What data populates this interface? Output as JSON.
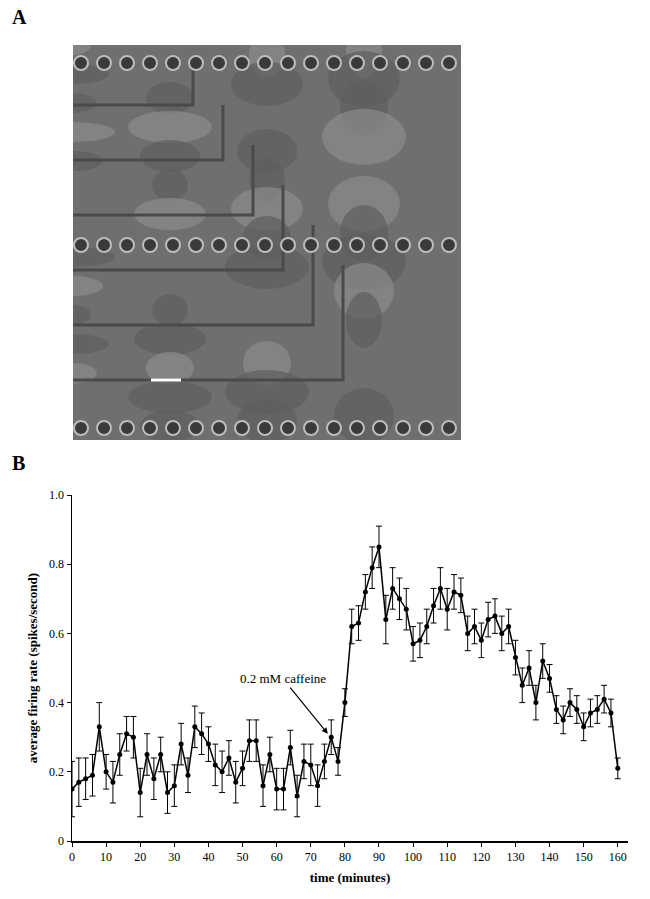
{
  "panel_labels": [
    "A",
    "B"
  ],
  "chart_data": {
    "type": "line",
    "xlabel": "time (minutes)",
    "ylabel": "average firing rate (spikes/second)",
    "x": [
      0,
      2,
      4,
      6,
      8,
      10,
      12,
      14,
      16,
      18,
      20,
      22,
      24,
      26,
      28,
      30,
      32,
      34,
      36,
      38,
      40,
      42,
      44,
      46,
      48,
      50,
      52,
      54,
      56,
      58,
      60,
      62,
      64,
      66,
      68,
      70,
      72,
      74,
      76,
      78,
      80,
      82,
      84,
      86,
      88,
      90,
      92,
      94,
      96,
      98,
      100,
      102,
      104,
      106,
      108,
      110,
      112,
      114,
      116,
      118,
      120,
      122,
      124,
      126,
      128,
      130,
      132,
      134,
      136,
      138,
      140,
      142,
      144,
      146,
      148,
      150,
      152,
      154,
      156,
      158,
      160
    ],
    "values": [
      0.15,
      0.17,
      0.18,
      0.19,
      0.33,
      0.2,
      0.17,
      0.25,
      0.31,
      0.3,
      0.14,
      0.25,
      0.18,
      0.25,
      0.14,
      0.16,
      0.28,
      0.19,
      0.33,
      0.31,
      0.28,
      0.22,
      0.2,
      0.24,
      0.17,
      0.21,
      0.29,
      0.29,
      0.16,
      0.25,
      0.15,
      0.15,
      0.27,
      0.13,
      0.23,
      0.22,
      0.16,
      0.23,
      0.3,
      0.23,
      0.4,
      0.62,
      0.63,
      0.72,
      0.79,
      0.85,
      0.64,
      0.73,
      0.7,
      0.67,
      0.57,
      0.58,
      0.62,
      0.68,
      0.73,
      0.67,
      0.72,
      0.71,
      0.6,
      0.62,
      0.58,
      0.64,
      0.65,
      0.6,
      0.62,
      0.53,
      0.45,
      0.5,
      0.4,
      0.52,
      0.47,
      0.38,
      0.35,
      0.4,
      0.38,
      0.33,
      0.37,
      0.38,
      0.41,
      0.37,
      0.21
    ],
    "errors": [
      0.08,
      0.07,
      0.06,
      0.06,
      0.07,
      0.05,
      0.06,
      0.06,
      0.05,
      0.06,
      0.07,
      0.06,
      0.06,
      0.05,
      0.06,
      0.06,
      0.06,
      0.05,
      0.06,
      0.06,
      0.05,
      0.06,
      0.06,
      0.05,
      0.06,
      0.05,
      0.06,
      0.06,
      0.06,
      0.05,
      0.06,
      0.06,
      0.05,
      0.06,
      0.05,
      0.06,
      0.06,
      0.05,
      0.05,
      0.04,
      0.04,
      0.05,
      0.05,
      0.05,
      0.06,
      0.06,
      0.07,
      0.06,
      0.06,
      0.06,
      0.05,
      0.05,
      0.05,
      0.05,
      0.06,
      0.06,
      0.05,
      0.05,
      0.05,
      0.05,
      0.05,
      0.05,
      0.05,
      0.05,
      0.05,
      0.05,
      0.05,
      0.05,
      0.05,
      0.05,
      0.04,
      0.04,
      0.04,
      0.04,
      0.04,
      0.04,
      0.04,
      0.04,
      0.04,
      0.04,
      0.03
    ],
    "color": "#000000",
    "marker": "circle",
    "xlim": [
      0,
      163
    ],
    "xticks": [
      0,
      10,
      20,
      30,
      40,
      50,
      60,
      70,
      80,
      90,
      100,
      110,
      120,
      130,
      140,
      150,
      160
    ],
    "ylim": [
      0,
      1
    ],
    "yticks": [
      0,
      0.2,
      0.4,
      0.6,
      0.8,
      {
        "value": 1,
        "label": "1.0"
      }
    ],
    "grid": false,
    "annotations": [
      {
        "text": "0.2 mM caffeine",
        "x": 75,
        "y": 0.31
      }
    ]
  }
}
